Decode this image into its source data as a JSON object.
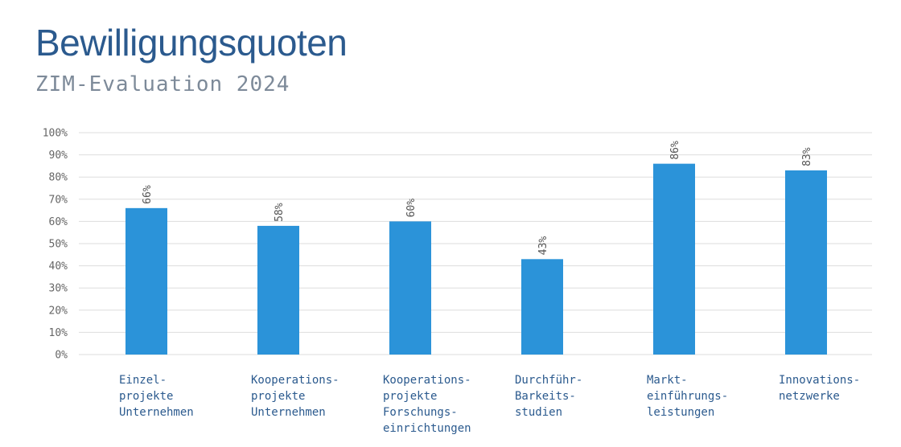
{
  "header": {
    "title": "Bewilligungsquoten",
    "subtitle": "ZIM-Evaluation 2024"
  },
  "chart_data": {
    "type": "bar",
    "title": "Bewilligungsquoten",
    "subtitle": "ZIM-Evaluation 2024",
    "categories": [
      "Einzel-projekte Unternehmen",
      "Kooperations-projekte Unternehmen",
      "Kooperations-projekte Forschungs-einrichtungen",
      "Durchführ-Barkeits-studien",
      "Markt-einführungs-leistungen",
      "Innovations-netzwerke"
    ],
    "category_lines": [
      [
        "Einzel-",
        "projekte",
        "Unternehmen"
      ],
      [
        "Kooperations-",
        "projekte",
        "Unternehmen"
      ],
      [
        "Kooperations-",
        "projekte",
        "Forschungs-",
        "einrichtungen"
      ],
      [
        "Durchführ-",
        "Barkeits-",
        "studien"
      ],
      [
        "Markt-",
        "einführungs-",
        "leistungen"
      ],
      [
        "Innovations-",
        "netzwerke"
      ]
    ],
    "values": [
      66,
      58,
      60,
      43,
      86,
      83
    ],
    "value_labels": [
      "66%",
      "58%",
      "60%",
      "43%",
      "86%",
      "83%"
    ],
    "y_ticks": [
      "0%",
      "10%",
      "20%",
      "30%",
      "40%",
      "50%",
      "60%",
      "70%",
      "80%",
      "90%",
      "100%"
    ],
    "ylim": [
      0,
      100
    ],
    "unit": "%",
    "grid": true,
    "legend": "none",
    "bar_color": "#2b93d9",
    "grid_color": "#dddddd"
  }
}
